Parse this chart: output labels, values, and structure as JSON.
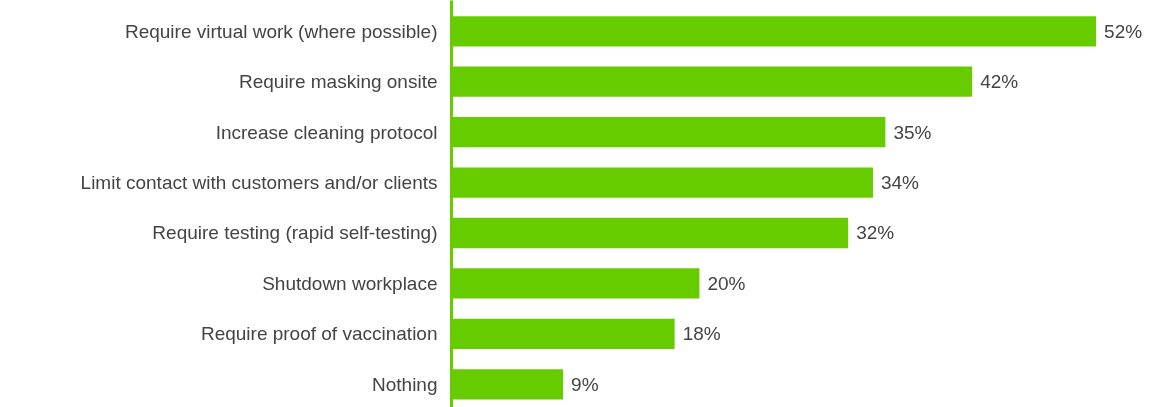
{
  "chart_data": {
    "type": "bar",
    "orientation": "horizontal",
    "categories": [
      "Require virtual work (where possible)",
      "Require masking onsite",
      "Increase cleaning protocol",
      "Limit contact with customers and/or clients",
      "Require testing (rapid self-testing)",
      "Shutdown workplace",
      "Require proof of vaccination",
      "Nothing"
    ],
    "values": [
      52,
      42,
      35,
      34,
      32,
      20,
      18,
      9
    ],
    "value_labels": [
      "52%",
      "42%",
      "35%",
      "34%",
      "32%",
      "20%",
      "18%",
      "9%"
    ],
    "color": "#66cc00",
    "grid": false
  }
}
